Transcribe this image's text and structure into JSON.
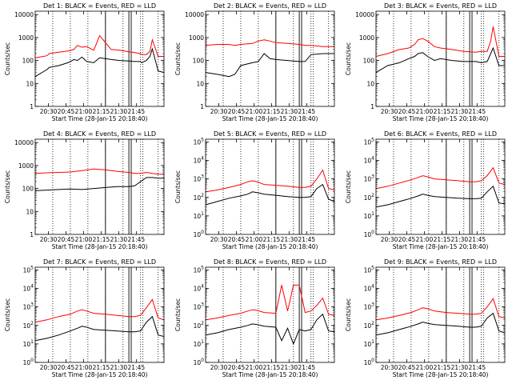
{
  "figure": {
    "start_time_label": "Start Time (28-Jan-15 20:18:40)",
    "ylabel": "Counts/sec",
    "x_tick_labels": [
      "20:30",
      "20:45",
      "21:00",
      "21:15",
      "21:30",
      "21:45"
    ],
    "colors": {
      "events": "#000000",
      "lld": "#ff0000",
      "axes": "#000000"
    }
  },
  "chart_data": [
    {
      "type": "line",
      "title": "Det 1: BLACK = Events, RED = LLD",
      "xlabel": "Start Time (28-Jan-15 20:18:40)",
      "ylabel": "Counts/sec",
      "yscale": "log",
      "ylim": [
        1,
        14000
      ],
      "y_tick_labels": [
        "1",
        "10",
        "100",
        "1000",
        "10000"
      ],
      "x_minutes": [
        0,
        10,
        12,
        20,
        28,
        33,
        36,
        40,
        44,
        50,
        55,
        65,
        72,
        80,
        85,
        90,
        91,
        95,
        98,
        100,
        105,
        110
      ],
      "series": [
        {
          "values": [
            130,
            160,
            200,
            230,
            260,
            300,
            450,
            380,
            400,
            280,
            1200,
            300,
            280,
            240,
            220,
            200,
            180,
            180,
            250,
            800,
            150,
            150
          ]
        },
        {
          "values": [
            20,
            40,
            50,
            60,
            80,
            110,
            100,
            140,
            90,
            80,
            130,
            110,
            100,
            95,
            90,
            90,
            80,
            100,
            150,
            320,
            35,
            30
          ]
        }
      ],
      "vlines_solid": [
        60,
        80,
        82
      ],
      "vlines_dotted": [
        0,
        15,
        30,
        45,
        60,
        75,
        90,
        92,
        105
      ]
    },
    {
      "type": "line",
      "title": "Det 2: BLACK = Events, RED = LLD",
      "xlabel": "Start Time (28-Jan-15 20:18:40)",
      "ylabel": "Counts/sec",
      "yscale": "log",
      "ylim": [
        1,
        14000
      ],
      "y_tick_labels": [
        "1",
        "10",
        "100",
        "1000",
        "10000"
      ],
      "x_minutes": [
        0,
        10,
        20,
        25,
        30,
        40,
        45,
        50,
        55,
        60,
        70,
        80,
        85,
        90,
        100,
        110
      ],
      "series": [
        {
          "values": [
            450,
            500,
            500,
            450,
            500,
            550,
            700,
            800,
            700,
            600,
            550,
            500,
            450,
            450,
            400,
            400
          ]
        },
        {
          "values": [
            30,
            25,
            20,
            25,
            60,
            80,
            90,
            200,
            120,
            110,
            100,
            90,
            90,
            180,
            200,
            200
          ]
        }
      ],
      "vlines_solid": [
        60,
        80,
        82
      ],
      "vlines_dotted": [
        0,
        15,
        30,
        45,
        60,
        75,
        90,
        92,
        105
      ]
    },
    {
      "type": "line",
      "title": "Det 3: BLACK = Events, RED = LLD",
      "xlabel": "Start Time (28-Jan-15 20:18:40)",
      "ylabel": "Counts/sec",
      "yscale": "log",
      "ylim": [
        1,
        14000
      ],
      "y_tick_labels": [
        "1",
        "10",
        "100",
        "1000",
        "10000"
      ],
      "x_minutes": [
        0,
        10,
        20,
        28,
        33,
        36,
        40,
        44,
        50,
        55,
        65,
        75,
        85,
        90,
        95,
        98,
        100,
        105,
        110
      ],
      "series": [
        {
          "values": [
            150,
            200,
            300,
            350,
            500,
            800,
            900,
            700,
            400,
            350,
            300,
            250,
            230,
            250,
            250,
            700,
            3000,
            150,
            150
          ]
        },
        {
          "values": [
            30,
            60,
            80,
            120,
            150,
            200,
            220,
            150,
            100,
            120,
            100,
            90,
            90,
            80,
            90,
            200,
            350,
            60,
            60
          ]
        }
      ],
      "vlines_solid": [
        60,
        80,
        82
      ],
      "vlines_dotted": [
        0,
        15,
        30,
        45,
        60,
        75,
        90,
        92,
        105
      ]
    },
    {
      "type": "line",
      "title": "Det 4: BLACK = Events, RED = LLD",
      "xlabel": "Start Time (28-Jan-15 20:18:40)",
      "ylabel": "Counts/sec",
      "yscale": "log",
      "ylim": [
        1,
        14000
      ],
      "y_tick_labels": [
        "1",
        "10",
        "100",
        "1000",
        "10000"
      ],
      "x_minutes": [
        0,
        10,
        20,
        30,
        40,
        50,
        60,
        70,
        80,
        85,
        90,
        95,
        100,
        105,
        110
      ],
      "series": [
        {
          "values": [
            450,
            480,
            500,
            520,
            600,
            700,
            650,
            550,
            500,
            450,
            450,
            500,
            450,
            420,
            420
          ]
        },
        {
          "values": [
            80,
            85,
            90,
            95,
            90,
            100,
            110,
            120,
            120,
            130,
            200,
            300,
            300,
            280,
            280
          ]
        }
      ],
      "vlines_solid": [
        60,
        80,
        82
      ],
      "vlines_dotted": [
        0,
        15,
        30,
        45,
        60,
        75,
        90,
        92,
        105
      ]
    },
    {
      "type": "line",
      "title": "Det 5: BLACK = Events, RED = LLD",
      "xlabel": "Start Time (28-Jan-15 20:18:40)",
      "ylabel": "Counts/sec",
      "yscale": "log",
      "ylim": [
        1,
        140000
      ],
      "y_tick_labels": [
        "10^0",
        "10^1",
        "10^2",
        "10^3",
        "10^4",
        "10^5"
      ],
      "x_minutes": [
        0,
        10,
        20,
        30,
        36,
        40,
        44,
        50,
        60,
        70,
        80,
        85,
        90,
        95,
        100,
        105,
        110
      ],
      "series": [
        {
          "values": [
            200,
            250,
            350,
            500,
            700,
            800,
            700,
            500,
            450,
            400,
            350,
            350,
            400,
            1000,
            3000,
            300,
            250
          ]
        },
        {
          "values": [
            40,
            60,
            90,
            120,
            150,
            200,
            180,
            150,
            130,
            110,
            100,
            100,
            110,
            300,
            500,
            80,
            60
          ]
        }
      ],
      "vlines_solid": [
        60,
        80,
        82
      ],
      "vlines_dotted": [
        0,
        15,
        30,
        45,
        60,
        75,
        90,
        92,
        105
      ]
    },
    {
      "type": "line",
      "title": "Det 6: BLACK = Events, RED = LLD",
      "xlabel": "Start Time (28-Jan-15 20:18:40)",
      "ylabel": "Counts/sec",
      "yscale": "log",
      "ylim": [
        1,
        140000
      ],
      "y_tick_labels": [
        "10^0",
        "10^1",
        "10^2",
        "10^3",
        "10^4",
        "10^5"
      ],
      "x_minutes": [
        0,
        10,
        20,
        30,
        36,
        40,
        44,
        50,
        60,
        70,
        80,
        85,
        90,
        95,
        100,
        105,
        110
      ],
      "series": [
        {
          "values": [
            300,
            400,
            600,
            900,
            1200,
            1500,
            1300,
            1000,
            900,
            800,
            700,
            700,
            800,
            1500,
            4000,
            600,
            500
          ]
        },
        {
          "values": [
            30,
            40,
            60,
            90,
            120,
            150,
            130,
            110,
            100,
            90,
            85,
            85,
            90,
            200,
            400,
            50,
            45
          ]
        }
      ],
      "vlines_solid": [
        60,
        80,
        82
      ],
      "vlines_dotted": [
        0,
        15,
        30,
        45,
        60,
        75,
        90,
        92,
        105
      ]
    },
    {
      "type": "line",
      "title": "Det 7: BLACK = Events, RED = LLD",
      "xlabel": "Start Time (28-Jan-15 20:18:40)",
      "ylabel": "Counts/sec",
      "yscale": "log",
      "ylim": [
        1,
        140000
      ],
      "y_tick_labels": [
        "10^0",
        "10^1",
        "10^2",
        "10^3",
        "10^4",
        "10^5"
      ],
      "x_minutes": [
        0,
        10,
        20,
        30,
        36,
        40,
        44,
        50,
        60,
        70,
        80,
        85,
        90,
        95,
        100,
        105,
        110
      ],
      "series": [
        {
          "values": [
            150,
            200,
            300,
            400,
            600,
            700,
            600,
            450,
            400,
            350,
            300,
            300,
            350,
            900,
            2500,
            250,
            200
          ]
        },
        {
          "values": [
            15,
            20,
            30,
            50,
            70,
            90,
            80,
            60,
            55,
            50,
            45,
            45,
            50,
            150,
            300,
            30,
            25
          ]
        }
      ],
      "vlines_solid": [
        60,
        80,
        82
      ],
      "vlines_dotted": [
        0,
        15,
        30,
        45,
        60,
        75,
        90,
        92,
        105
      ]
    },
    {
      "type": "line",
      "title": "Det 8: BLACK = Events, RED = LLD",
      "xlabel": "Start Time (28-Jan-15 20:18:40)",
      "ylabel": "Counts/sec",
      "yscale": "log",
      "ylim": [
        1,
        140000
      ],
      "y_tick_labels": [
        "10^0",
        "10^1",
        "10^2",
        "10^3",
        "10^4",
        "10^5"
      ],
      "x_minutes": [
        0,
        10,
        20,
        30,
        36,
        40,
        44,
        50,
        60,
        65,
        70,
        75,
        80,
        85,
        90,
        95,
        100,
        105,
        110
      ],
      "series": [
        {
          "values": [
            200,
            250,
            350,
            450,
            600,
            700,
            650,
            500,
            450,
            15000,
            600,
            15000,
            15000,
            500,
            600,
            1200,
            3000,
            400,
            350
          ]
        },
        {
          "values": [
            30,
            40,
            60,
            80,
            100,
            120,
            110,
            90,
            80,
            15,
            70,
            10,
            60,
            50,
            60,
            200,
            400,
            50,
            45
          ]
        }
      ],
      "vlines_solid": [
        60,
        80,
        82
      ],
      "vlines_dotted": [
        0,
        15,
        30,
        45,
        60,
        75,
        90,
        92,
        105
      ]
    },
    {
      "type": "line",
      "title": "Det 9: BLACK = Events, RED = LLD",
      "xlabel": "Start Time (28-Jan-15 20:18:40)",
      "ylabel": "Counts/sec",
      "yscale": "log",
      "ylim": [
        1,
        140000
      ],
      "y_tick_labels": [
        "10^0",
        "10^1",
        "10^2",
        "10^3",
        "10^4",
        "10^5"
      ],
      "x_minutes": [
        0,
        10,
        20,
        30,
        36,
        40,
        44,
        50,
        60,
        70,
        80,
        85,
        90,
        95,
        100,
        105,
        110
      ],
      "series": [
        {
          "values": [
            200,
            250,
            350,
            500,
            700,
            900,
            800,
            600,
            500,
            450,
            400,
            400,
            450,
            1000,
            2800,
            300,
            250
          ]
        },
        {
          "values": [
            30,
            40,
            60,
            90,
            120,
            150,
            130,
            110,
            100,
            90,
            80,
            80,
            90,
            250,
            450,
            50,
            40
          ]
        }
      ],
      "vlines_solid": [
        60,
        80,
        82
      ],
      "vlines_dotted": [
        0,
        15,
        30,
        45,
        60,
        75,
        90,
        92,
        105
      ]
    }
  ]
}
